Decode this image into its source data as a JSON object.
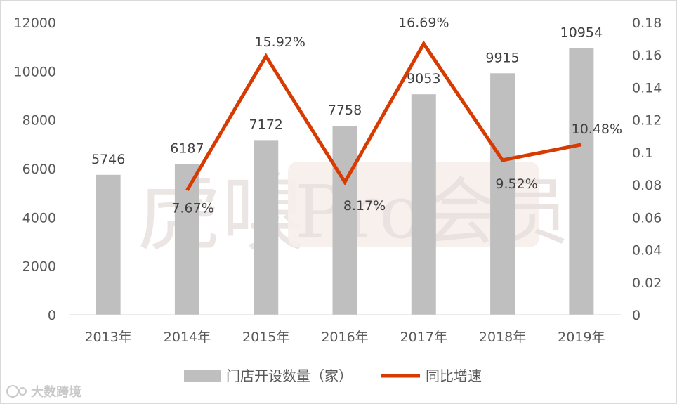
{
  "chart_data": {
    "type": "bar+line",
    "categories": [
      "2013年",
      "2014年",
      "2015年",
      "2016年",
      "2017年",
      "2018年",
      "2019年"
    ],
    "series": [
      {
        "name": "门店开设数量（家）",
        "type": "bar",
        "axis": "left",
        "color": "#bfbfbf",
        "values": [
          5746,
          6187,
          7172,
          7758,
          9053,
          9915,
          10954
        ],
        "labels": [
          "5746",
          "6187",
          "7172",
          "7758",
          "9053",
          "9915",
          "10954"
        ]
      },
      {
        "name": "同比增速",
        "type": "line",
        "axis": "right",
        "color": "#d83b01",
        "values": [
          null,
          0.0767,
          0.1592,
          0.0817,
          0.1669,
          0.0952,
          0.1048
        ],
        "labels": [
          "",
          "7.67%",
          "15.92%",
          "8.17%",
          "16.69%",
          "9.52%",
          "10.48%"
        ]
      }
    ],
    "left_axis": {
      "min": 0,
      "max": 12000,
      "ticks": [
        "0",
        "2000",
        "4000",
        "6000",
        "8000",
        "10000",
        "12000"
      ]
    },
    "right_axis": {
      "min": 0,
      "max": 0.18,
      "ticks": [
        "0",
        "0.02",
        "0.04",
        "0.06",
        "0.08",
        "0.1",
        "0.12",
        "0.14",
        "0.16",
        "0.18"
      ]
    },
    "grid": false,
    "legend_position": "bottom"
  },
  "watermarks": {
    "center_left": "虎嗅",
    "center_right": "Pro会员",
    "corner": "大数跨境"
  }
}
